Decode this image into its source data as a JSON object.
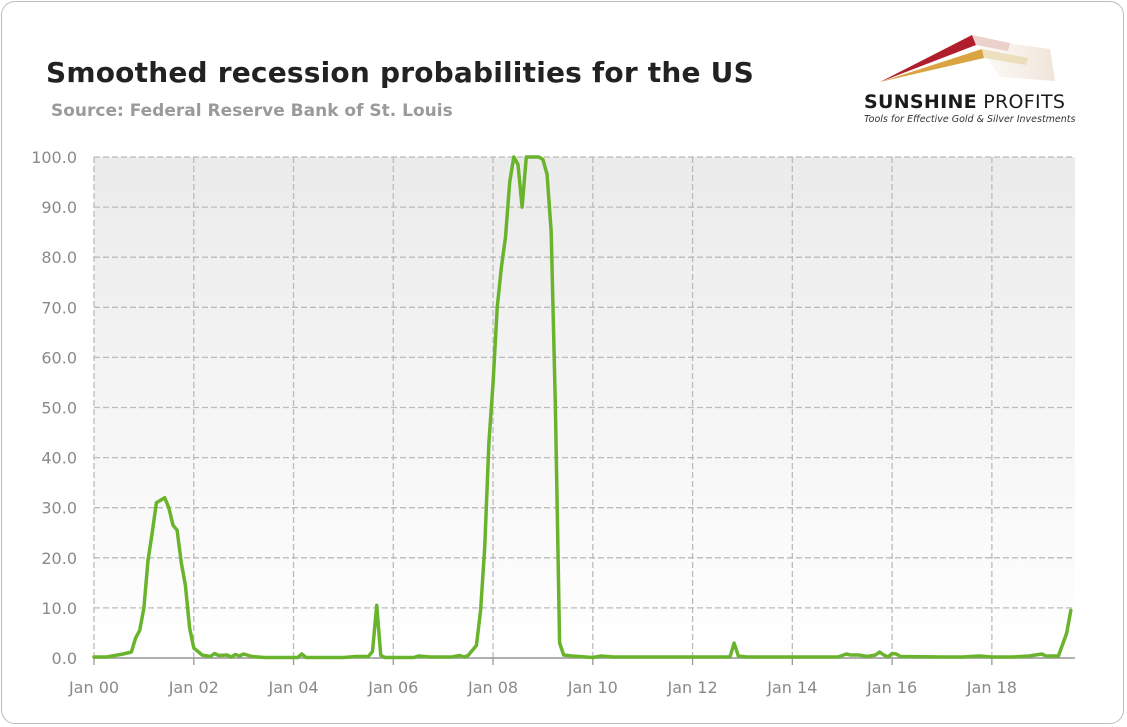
{
  "title": "Smoothed recession probabilities for the US",
  "subtitle": "Source: Federal Reserve Bank of St. Louis",
  "logo": {
    "name_bold": "SUNSHINE",
    "name_rest": " PROFITS",
    "tagline": "Tools for Effective Gold & Silver Investments"
  },
  "colors": {
    "line": "#6ab42d",
    "plot_bg_top": "#ebebeb",
    "plot_bg_bottom": "#ffffff",
    "grid": "#bbbbbb",
    "axis_text": "#8a8a8a"
  },
  "chart_data": {
    "type": "line",
    "title": "Smoothed recession probabilities for the US",
    "xlabel": "",
    "ylabel": "",
    "ylim": [
      0,
      100
    ],
    "xlim": [
      "2000-01",
      "2019-09"
    ],
    "grid": true,
    "y_ticks": [
      "0.0",
      "10.0",
      "20.0",
      "30.0",
      "40.0",
      "50.0",
      "60.0",
      "70.0",
      "80.0",
      "90.0",
      "100.0"
    ],
    "x_ticks": [
      {
        "label": "Jan 00",
        "x": "2000-01"
      },
      {
        "label": "Jan 02",
        "x": "2002-01"
      },
      {
        "label": "Jan 04",
        "x": "2004-01"
      },
      {
        "label": "Jan 06",
        "x": "2006-01"
      },
      {
        "label": "Jan 08",
        "x": "2008-01"
      },
      {
        "label": "Jan 10",
        "x": "2010-01"
      },
      {
        "label": "Jan 12",
        "x": "2012-01"
      },
      {
        "label": "Jan 14",
        "x": "2014-01"
      },
      {
        "label": "Jan 16",
        "x": "2016-01"
      },
      {
        "label": "Jan 18",
        "x": "2018-01"
      }
    ],
    "series": [
      {
        "points": [
          [
            "2000-01",
            0.2
          ],
          [
            "2000-04",
            0.2
          ],
          [
            "2000-08",
            0.8
          ],
          [
            "2000-10",
            1.2
          ],
          [
            "2000-11",
            4.0
          ],
          [
            "2000-12",
            5.5
          ],
          [
            "2001-01",
            10.0
          ],
          [
            "2001-02",
            19.5
          ],
          [
            "2001-03",
            25.0
          ],
          [
            "2001-04",
            31.0
          ],
          [
            "2001-05",
            31.5
          ],
          [
            "2001-06",
            32.0
          ],
          [
            "2001-07",
            30.0
          ],
          [
            "2001-08",
            26.5
          ],
          [
            "2001-09",
            25.5
          ],
          [
            "2001-10",
            19.0
          ],
          [
            "2001-11",
            14.5
          ],
          [
            "2001-12",
            6.0
          ],
          [
            "2002-01",
            2.0
          ],
          [
            "2002-03",
            0.6
          ],
          [
            "2002-05",
            0.3
          ],
          [
            "2002-06",
            0.9
          ],
          [
            "2002-07",
            0.5
          ],
          [
            "2002-09",
            0.6
          ],
          [
            "2002-10",
            0.2
          ],
          [
            "2002-11",
            0.7
          ],
          [
            "2002-12",
            0.4
          ],
          [
            "2003-01",
            0.8
          ],
          [
            "2003-03",
            0.3
          ],
          [
            "2003-06",
            0.1
          ],
          [
            "2004-02",
            0.1
          ],
          [
            "2004-03",
            0.8
          ],
          [
            "2004-04",
            0.1
          ],
          [
            "2005-01",
            0.1
          ],
          [
            "2005-04",
            0.3
          ],
          [
            "2005-07",
            0.3
          ],
          [
            "2005-08",
            1.3
          ],
          [
            "2005-09",
            10.5
          ],
          [
            "2005-10",
            0.5
          ],
          [
            "2005-11",
            0.1
          ],
          [
            "2006-06",
            0.1
          ],
          [
            "2006-07",
            0.4
          ],
          [
            "2006-10",
            0.2
          ],
          [
            "2007-03",
            0.2
          ],
          [
            "2007-05",
            0.5
          ],
          [
            "2007-06",
            0.2
          ],
          [
            "2007-07",
            0.5
          ],
          [
            "2007-09",
            2.5
          ],
          [
            "2007-10",
            9.5
          ],
          [
            "2007-11",
            22.0
          ],
          [
            "2007-12",
            43.0
          ],
          [
            "2008-01",
            55.0
          ],
          [
            "2008-02",
            70.0
          ],
          [
            "2008-03",
            78.0
          ],
          [
            "2008-04",
            84.0
          ],
          [
            "2008-05",
            95.0
          ],
          [
            "2008-06",
            100.0
          ],
          [
            "2008-07",
            98.5
          ],
          [
            "2008-08",
            90.0
          ],
          [
            "2008-09",
            100.0
          ],
          [
            "2008-10",
            100.0
          ],
          [
            "2008-12",
            100.0
          ],
          [
            "2009-01",
            99.5
          ],
          [
            "2009-02",
            96.5
          ],
          [
            "2009-03",
            85.0
          ],
          [
            "2009-04",
            50.0
          ],
          [
            "2009-05",
            3.0
          ],
          [
            "2009-06",
            0.6
          ],
          [
            "2009-08",
            0.4
          ],
          [
            "2010-01",
            0.1
          ],
          [
            "2010-03",
            0.4
          ],
          [
            "2010-06",
            0.2
          ],
          [
            "2010-09",
            0.2
          ],
          [
            "2011-01",
            0.2
          ],
          [
            "2011-06",
            0.2
          ],
          [
            "2012-06",
            0.2
          ],
          [
            "2012-10",
            0.2
          ],
          [
            "2012-11",
            3.0
          ],
          [
            "2012-12",
            0.4
          ],
          [
            "2013-02",
            0.2
          ],
          [
            "2013-06",
            0.2
          ],
          [
            "2014-01",
            0.2
          ],
          [
            "2014-06",
            0.2
          ],
          [
            "2014-12",
            0.2
          ],
          [
            "2015-02",
            0.8
          ],
          [
            "2015-03",
            0.6
          ],
          [
            "2015-05",
            0.6
          ],
          [
            "2015-07",
            0.3
          ],
          [
            "2015-09",
            0.6
          ],
          [
            "2015-10",
            1.2
          ],
          [
            "2015-11",
            0.6
          ],
          [
            "2015-12",
            0.2
          ],
          [
            "2016-01",
            0.9
          ],
          [
            "2016-02",
            0.8
          ],
          [
            "2016-03",
            0.3
          ],
          [
            "2017-01",
            0.2
          ],
          [
            "2017-06",
            0.2
          ],
          [
            "2017-10",
            0.4
          ],
          [
            "2018-01",
            0.2
          ],
          [
            "2018-06",
            0.2
          ],
          [
            "2018-10",
            0.4
          ],
          [
            "2019-01",
            0.8
          ],
          [
            "2019-02",
            0.4
          ],
          [
            "2019-04",
            0.4
          ],
          [
            "2019-05",
            0.4
          ],
          [
            "2019-07",
            5.0
          ],
          [
            "2019-08",
            9.5
          ]
        ]
      }
    ]
  }
}
